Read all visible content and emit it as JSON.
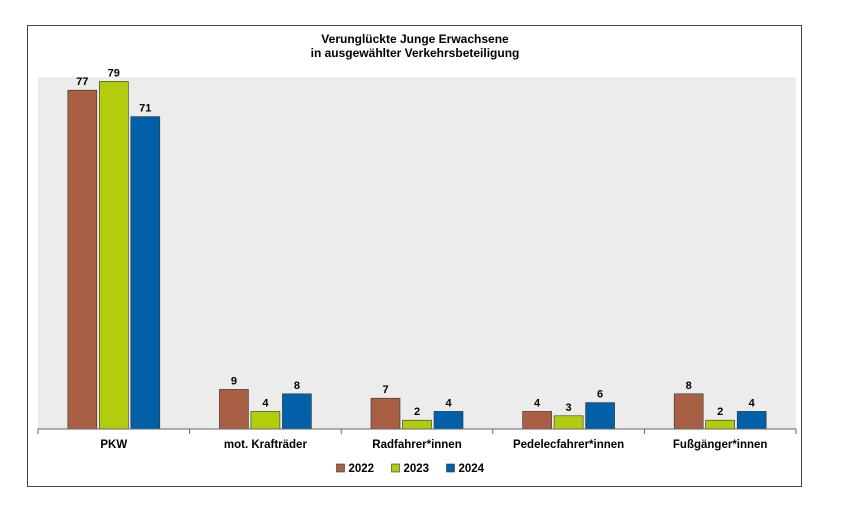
{
  "chart_data": {
    "type": "bar",
    "title_lines": [
      "Verunglückte Junge Erwachsene",
      "in ausgewählter Verkehrsbeteiligung"
    ],
    "categories": [
      "PKW",
      "mot. Krafträder",
      "Radfahrer*innen",
      "Pedelecfahrer*innen",
      "Fußgänger*innen"
    ],
    "series": [
      {
        "name": "2022",
        "color": "#a95f44",
        "values": [
          77,
          9,
          7,
          4,
          8
        ]
      },
      {
        "name": "2023",
        "color": "#b3cc0e",
        "values": [
          79,
          4,
          2,
          3,
          2
        ]
      },
      {
        "name": "2024",
        "color": "#0160a7",
        "values": [
          71,
          8,
          4,
          6,
          4
        ]
      }
    ],
    "ylim": [
      0,
      80
    ],
    "grid": false,
    "legend_position": "bottom",
    "plot_background": "#ececec"
  }
}
